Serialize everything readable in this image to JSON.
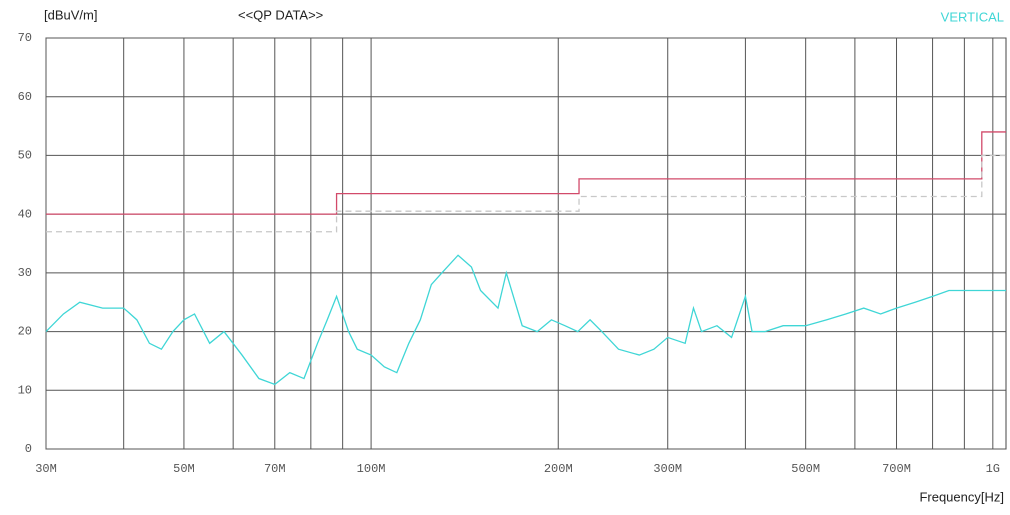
{
  "chart_data": {
    "type": "line",
    "title": "<<QP DATA>>",
    "y_label": "[dBuV/m]",
    "x_label": "Frequency[Hz]",
    "log_x": true,
    "grid": true,
    "xlim": [
      30000000.0,
      1050000000.0
    ],
    "ylim": [
      0,
      70
    ],
    "yticks": [
      0,
      10,
      20,
      30,
      40,
      50,
      60,
      70
    ],
    "xticks": [
      {
        "value": 30000000.0,
        "label": "30M"
      },
      {
        "value": 50000000.0,
        "label": "50M"
      },
      {
        "value": 70000000.0,
        "label": "70M"
      },
      {
        "value": 100000000.0,
        "label": "100M"
      },
      {
        "value": 200000000.0,
        "label": "200M"
      },
      {
        "value": 300000000.0,
        "label": "300M"
      },
      {
        "value": 500000000.0,
        "label": "500M"
      },
      {
        "value": 700000000.0,
        "label": "700M"
      },
      {
        "value": 1000000000.0,
        "label": "1G"
      }
    ],
    "xminor": [
      40000000.0,
      60000000.0,
      80000000.0,
      90000000.0,
      400000000.0,
      600000000.0,
      800000000.0,
      900000000.0
    ],
    "series": [
      {
        "color": "#d24a6a",
        "dash": false,
        "x": [
          30000000.0,
          88000000.0,
          88000000.0,
          216000000.0,
          216000000.0,
          960000000.0,
          960000000.0,
          1050000000.0
        ],
        "values": [
          40,
          40,
          43.5,
          43.5,
          46,
          46,
          54,
          54
        ]
      },
      {
        "color": "#c8c8c8",
        "dash": true,
        "x": [
          30000000.0,
          88000000.0,
          88000000.0,
          216000000.0,
          216000000.0,
          960000000.0,
          960000000.0,
          1050000000.0
        ],
        "values": [
          37,
          37,
          40.5,
          40.5,
          43,
          43,
          50,
          50
        ]
      },
      {
        "name": "VERTICAL",
        "color": "#3fd6d6",
        "dash": false,
        "x": [
          30000000.0,
          32000000.0,
          34000000.0,
          37000000.0,
          40000000.0,
          42000000.0,
          44000000.0,
          46000000.0,
          48000000.0,
          50000000.0,
          52000000.0,
          55000000.0,
          58000000.0,
          62000000.0,
          66000000.0,
          70000000.0,
          74000000.0,
          78000000.0,
          82000000.0,
          85000000.0,
          88000000.0,
          92000000.0,
          95000000.0,
          100000000.0,
          105000000.0,
          110000000.0,
          115000000.0,
          120000000.0,
          125000000.0,
          130000000.0,
          138000000.0,
          145000000.0,
          150000000.0,
          160000000.0,
          165000000.0,
          175000000.0,
          185000000.0,
          195000000.0,
          205000000.0,
          215000000.0,
          225000000.0,
          235000000.0,
          250000000.0,
          270000000.0,
          285000000.0,
          300000000.0,
          320000000.0,
          330000000.0,
          340000000.0,
          360000000.0,
          380000000.0,
          400000000.0,
          410000000.0,
          430000000.0,
          460000000.0,
          500000000.0,
          540000000.0,
          580000000.0,
          620000000.0,
          660000000.0,
          700000000.0,
          750000000.0,
          800000000.0,
          850000000.0,
          900000000.0,
          950000000.0,
          1000000000.0,
          1050000000.0
        ],
        "values": [
          20,
          23,
          25,
          24,
          24,
          22,
          18,
          17,
          20,
          22,
          23,
          18,
          20,
          16,
          12,
          11,
          13,
          12,
          18,
          22,
          26,
          20,
          17,
          16,
          14,
          13,
          18,
          22,
          28,
          30,
          33,
          31,
          27,
          24,
          30,
          21,
          20,
          22,
          21,
          20,
          22,
          20,
          17,
          16,
          17,
          19,
          18,
          24,
          20,
          21,
          19,
          26,
          20,
          20,
          21,
          21,
          22,
          23,
          24,
          23,
          24,
          25,
          26,
          27,
          27,
          27,
          27,
          27
        ]
      }
    ]
  }
}
